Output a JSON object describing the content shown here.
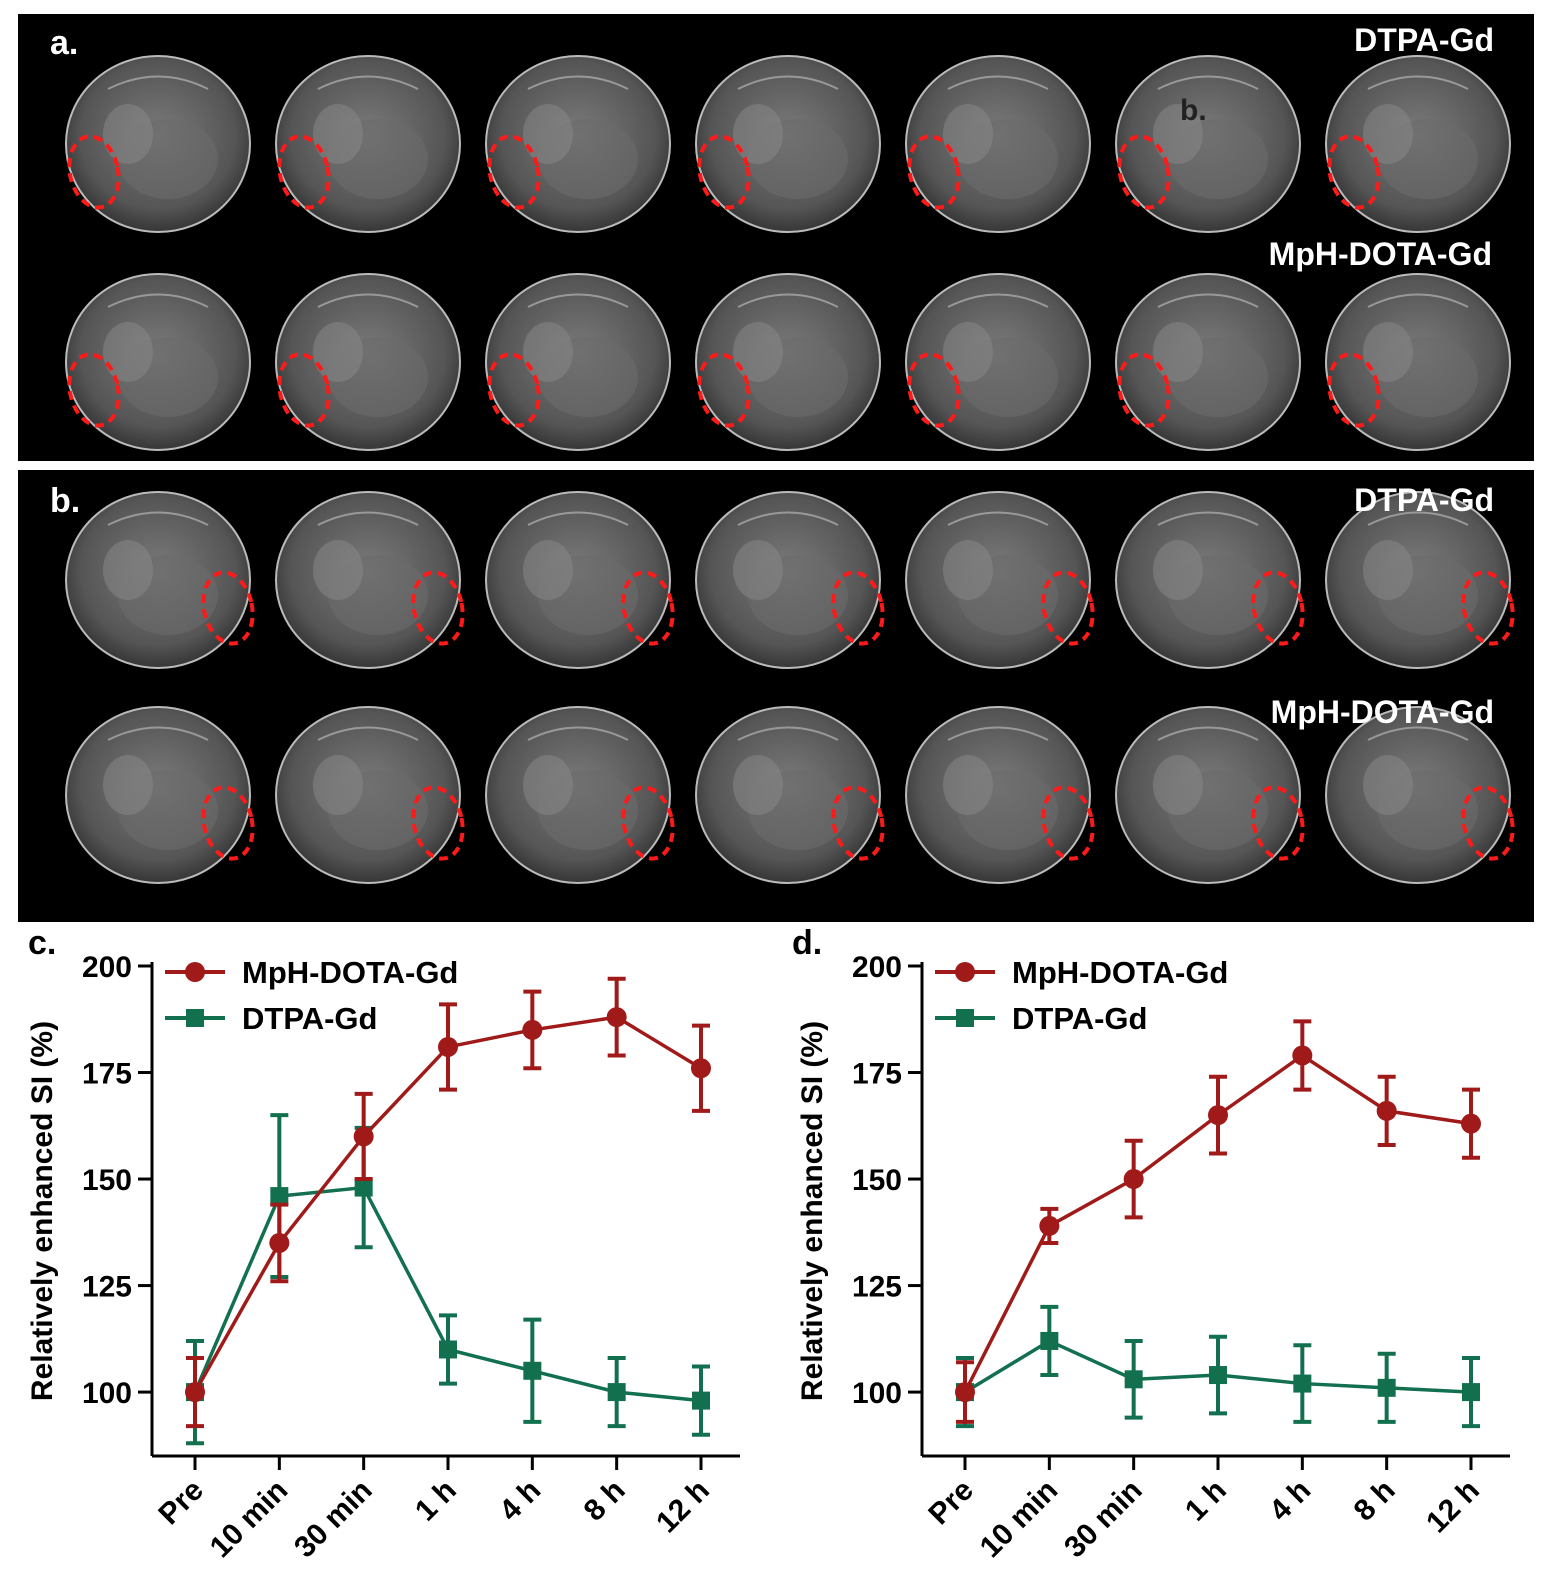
{
  "panels": {
    "a": {
      "letter": "a.",
      "inset_letter": "b.",
      "row_labels": [
        "DTPA-Gd",
        "MpH-DOTA-Gd"
      ]
    },
    "b": {
      "letter": "b.",
      "row_labels": [
        "DTPA-Gd",
        "MpH-DOTA-Gd"
      ]
    }
  },
  "colors": {
    "mph": "#a01a1a",
    "dtpa": "#12704f",
    "roi": "#ff1a1a"
  },
  "chart_data": [
    {
      "panel": "c.",
      "type": "line",
      "categories": [
        "Pre",
        "10 min",
        "30 min",
        "1 h",
        "4 h",
        "8 h",
        "12 h"
      ],
      "ylabel": "Relatively enhanced SI (%)",
      "ylim": [
        85,
        200
      ],
      "yticks": [
        100,
        125,
        150,
        175,
        200
      ],
      "legend": "top-left",
      "series": [
        {
          "name": "MpH-DOTA-Gd",
          "color": "#a01a1a",
          "marker": "circle",
          "values": [
            100,
            135,
            160,
            181,
            185,
            188,
            176
          ],
          "errors": [
            8,
            9,
            10,
            10,
            9,
            9,
            10
          ]
        },
        {
          "name": "DTPA-Gd",
          "color": "#12704f",
          "marker": "square",
          "values": [
            100,
            146,
            148,
            110,
            105,
            100,
            98
          ],
          "errors": [
            12,
            19,
            14,
            8,
            12,
            8,
            8
          ]
        }
      ]
    },
    {
      "panel": "d.",
      "type": "line",
      "categories": [
        "Pre",
        "10 min",
        "30 min",
        "1 h",
        "4 h",
        "8 h",
        "12 h"
      ],
      "ylabel": "Relatively enhanced SI (%)",
      "ylim": [
        85,
        200
      ],
      "yticks": [
        100,
        125,
        150,
        175,
        200
      ],
      "legend": "top-left",
      "series": [
        {
          "name": "MpH-DOTA-Gd",
          "color": "#a01a1a",
          "marker": "circle",
          "values": [
            100,
            139,
            150,
            165,
            179,
            166,
            163
          ],
          "errors": [
            7,
            4,
            9,
            9,
            8,
            8,
            8
          ]
        },
        {
          "name": "DTPA-Gd",
          "color": "#12704f",
          "marker": "square",
          "values": [
            100,
            112,
            103,
            104,
            102,
            101,
            100
          ],
          "errors": [
            8,
            8,
            9,
            9,
            9,
            8,
            8
          ]
        }
      ]
    }
  ]
}
